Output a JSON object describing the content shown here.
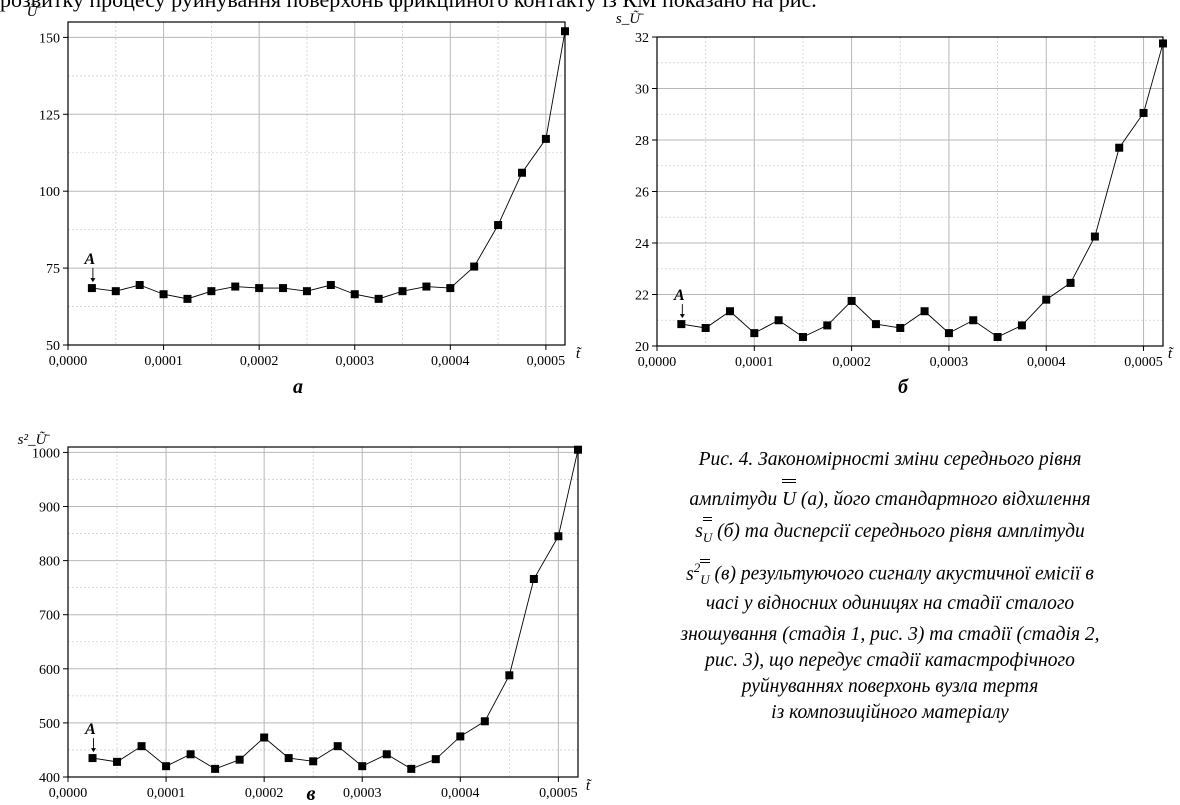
{
  "document": {
    "top_text": "розвитку процесу руйнування поверхонь фрикційного контакту із КМ показано на рис."
  },
  "chart_data": [
    {
      "type": "line",
      "panel_label": "а",
      "ylabel": "Ũ̄",
      "xlabel": "t̃",
      "xlim": [
        0,
        0.00052
      ],
      "ylim": [
        50,
        155
      ],
      "xticks": [
        0,
        0.0001,
        0.0002,
        0.0003,
        0.0004,
        0.0005
      ],
      "xtick_labels": [
        "0,0000",
        "0,0001",
        "0,0002",
        "0,0003",
        "0,0004",
        "0,0005"
      ],
      "yticks": [
        50,
        75,
        100,
        125,
        150
      ],
      "ytick_labels": [
        "50",
        "75",
        "100",
        "125",
        "150"
      ],
      "grid": true,
      "annotation": "A",
      "x": [
        2.5e-05,
        5e-05,
        7.5e-05,
        0.0001,
        0.000125,
        0.00015,
        0.000175,
        0.0002,
        0.000225,
        0.00025,
        0.000275,
        0.0003,
        0.000325,
        0.00035,
        0.000375,
        0.0004,
        0.000425,
        0.00045,
        0.000475,
        0.0005,
        0.00052
      ],
      "y": [
        68.5,
        67.5,
        69.5,
        66.5,
        65,
        67.5,
        69,
        68.5,
        68.5,
        67.5,
        69.5,
        66.5,
        65,
        67.5,
        69,
        68.5,
        75.5,
        89,
        106,
        117,
        152
      ]
    },
    {
      "type": "line",
      "panel_label": "б",
      "ylabel": "s_Ũ̄",
      "xlabel": "t̃",
      "xlim": [
        0,
        0.00052
      ],
      "ylim": [
        20,
        32
      ],
      "xticks": [
        0,
        0.0001,
        0.0002,
        0.0003,
        0.0004,
        0.0005
      ],
      "xtick_labels": [
        "0,0000",
        "0,0001",
        "0,0002",
        "0,0003",
        "0,0004",
        "0,0005"
      ],
      "yticks": [
        20,
        22,
        24,
        26,
        28,
        30,
        32
      ],
      "ytick_labels": [
        "20",
        "22",
        "24",
        "26",
        "28",
        "30",
        "32"
      ],
      "grid": true,
      "annotation": "A",
      "x": [
        2.5e-05,
        5e-05,
        7.5e-05,
        0.0001,
        0.000125,
        0.00015,
        0.000175,
        0.0002,
        0.000225,
        0.00025,
        0.000275,
        0.0003,
        0.000325,
        0.00035,
        0.000375,
        0.0004,
        0.000425,
        0.00045,
        0.000475,
        0.0005,
        0.00052
      ],
      "y": [
        20.85,
        20.7,
        21.35,
        20.5,
        21.0,
        20.35,
        20.8,
        21.75,
        20.85,
        20.7,
        21.35,
        20.5,
        21.0,
        20.35,
        20.8,
        21.8,
        22.45,
        24.25,
        27.7,
        29.05,
        31.75
      ]
    },
    {
      "type": "line",
      "panel_label": "в",
      "ylabel": "s²_Ũ̄",
      "xlabel": "t̃",
      "xlim": [
        0,
        0.00052
      ],
      "ylim": [
        400,
        1010
      ],
      "xticks": [
        0,
        0.0001,
        0.0002,
        0.0003,
        0.0004,
        0.0005
      ],
      "xtick_labels": [
        "0,0000",
        "0,0001",
        "0,0002",
        "0,0003",
        "0,0004",
        "0,0005"
      ],
      "yticks": [
        400,
        500,
        600,
        700,
        800,
        900,
        1000
      ],
      "ytick_labels": [
        "400",
        "500",
        "600",
        "700",
        "800",
        "900",
        "1000"
      ],
      "grid": true,
      "annotation": "A",
      "x": [
        2.5e-05,
        5e-05,
        7.5e-05,
        0.0001,
        0.000125,
        0.00015,
        0.000175,
        0.0002,
        0.000225,
        0.00025,
        0.000275,
        0.0003,
        0.000325,
        0.00035,
        0.000375,
        0.0004,
        0.000425,
        0.00045,
        0.000475,
        0.0005,
        0.00052
      ],
      "y": [
        435,
        428,
        457,
        420,
        442,
        415,
        432,
        473,
        435,
        429,
        457,
        420,
        442,
        415,
        433,
        475,
        503,
        588,
        766,
        845,
        1005
      ]
    }
  ],
  "caption": {
    "line1": "Рис. 4. Закономірності зміни середнього рівня",
    "line2a": "амплітуди",
    "line2b": "(а), його стандартного відхилення",
    "line3": "(б) та дисперсії середнього рівня амплітуди",
    "line4": "(в) результуючого сигналу акустичної емісії в",
    "line5": "часі у відносних одиницях на стадії сталого",
    "line6": "зношування (стадія 1, рис. 3) та стадії (стадія 2,",
    "line7": "рис. 3), що передує стадії катастрофічного",
    "line8": "руйнуваннях поверхонь вузла тертя",
    "line9": "із композиційного матеріалу",
    "sym_U": "U",
    "sym_s": "s",
    "sym_sq": "2"
  }
}
